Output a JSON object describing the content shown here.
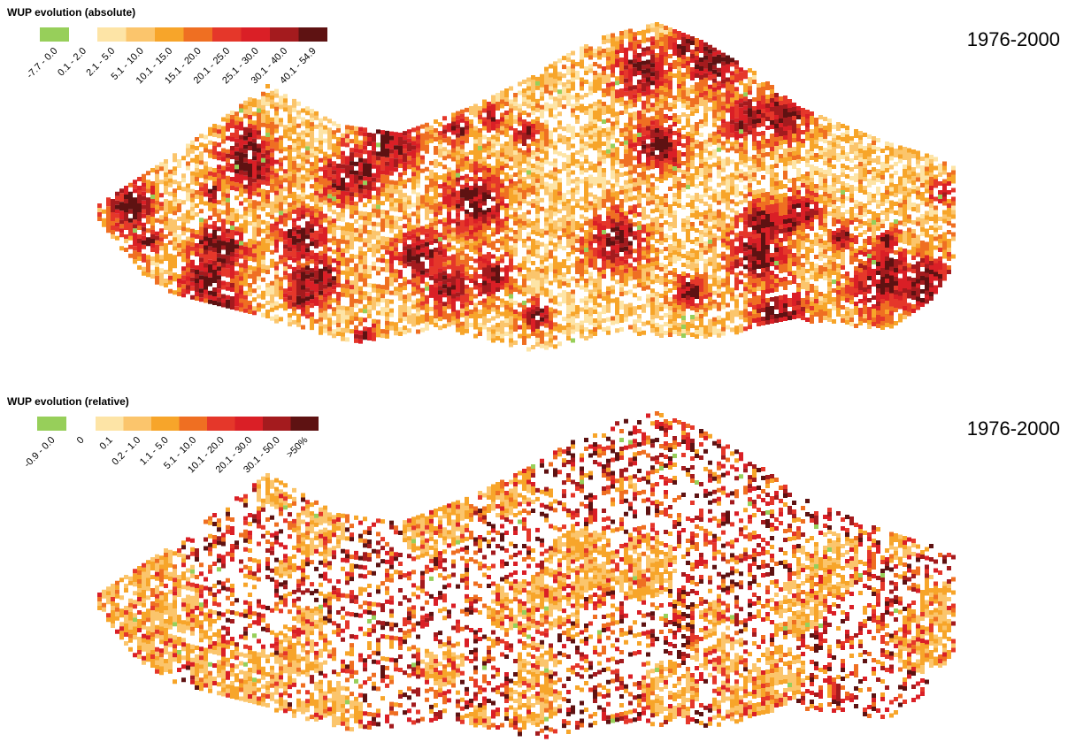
{
  "maps": [
    {
      "legend": {
        "title": "WUP evolution (absolute)",
        "items": [
          {
            "label": "-7.7 - 0.0",
            "color": "#97cf5a"
          },
          {
            "label": "0.1 - 2.0",
            "color": "#ffffff"
          },
          {
            "label": "2.1 - 5.0",
            "color": "#fde4a6"
          },
          {
            "label": "5.1 - 10.0",
            "color": "#fbc56c"
          },
          {
            "label": "10.1 - 15.0",
            "color": "#f7a52a"
          },
          {
            "label": "15.1 - 20.0",
            "color": "#ef6f22"
          },
          {
            "label": "20.1 - 25.0",
            "color": "#e5372a"
          },
          {
            "label": "25.1 - 30.0",
            "color": "#da1f26"
          },
          {
            "label": "30.1 - 40.0",
            "color": "#a41b1e"
          },
          {
            "label": "40.1 - 54.9",
            "color": "#5e1212"
          }
        ]
      },
      "period": "1976-2000"
    },
    {
      "legend": {
        "title": "WUP evolution (relative)",
        "items": [
          {
            "label": "-0.9 - 0.0",
            "color": "#97cf5a"
          },
          {
            "label": "0",
            "color": "#ffffff"
          },
          {
            "label": "0.1",
            "color": "#fde4a6"
          },
          {
            "label": "0.2 - 1.0",
            "color": "#fbc56c"
          },
          {
            "label": "1.1 - 5.0",
            "color": "#f7a52a"
          },
          {
            "label": "5.1 - 10.0",
            "color": "#ef6f22"
          },
          {
            "label": "10.1 - 20.0",
            "color": "#e5372a"
          },
          {
            "label": "20.1 - 30.0",
            "color": "#da1f26"
          },
          {
            "label": "30.1 - 50.0",
            "color": "#a41b1e"
          },
          {
            "label": ">50%",
            "color": "#5e1212"
          }
        ]
      },
      "period": "1976-2000"
    }
  ]
}
